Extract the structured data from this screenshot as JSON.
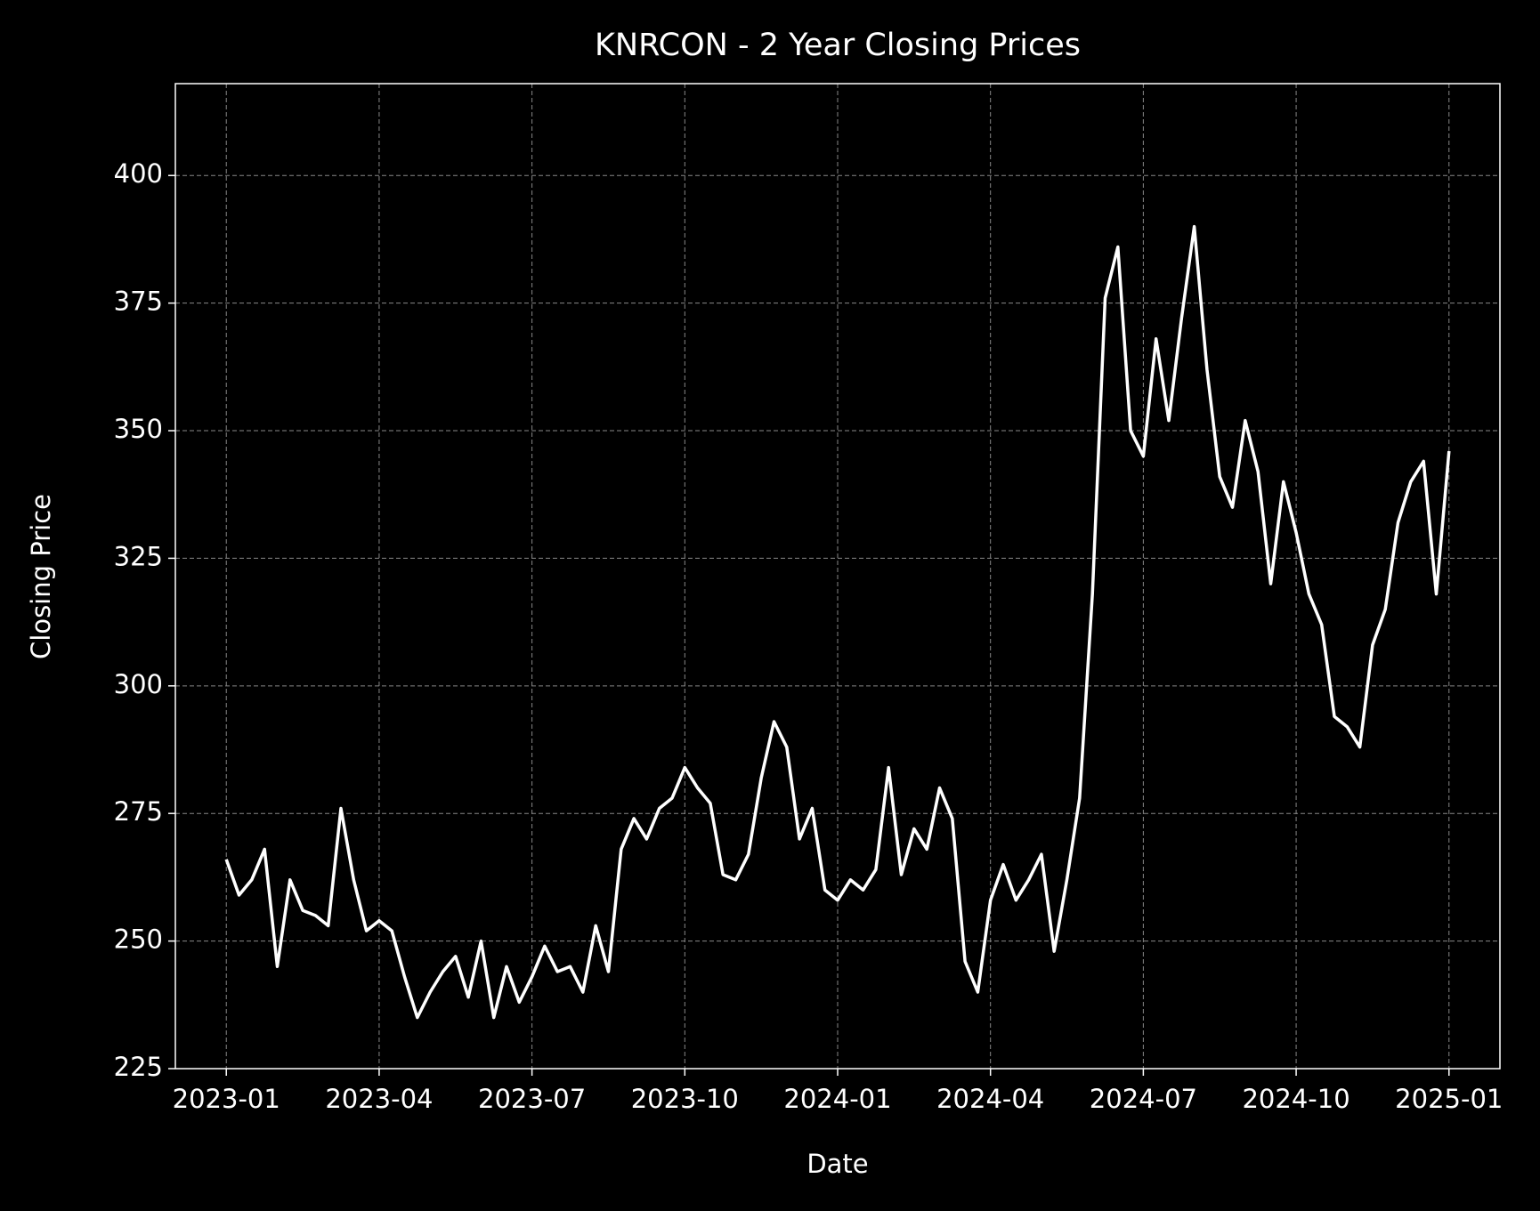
{
  "chart_data": {
    "type": "line",
    "title": "KNRCON - 2 Year Closing Prices",
    "x_label": "Date",
    "y_label": "Closing Price",
    "x": [
      "2023-01",
      "2023-01",
      "2023-01",
      "2023-01",
      "2023-02",
      "2023-02",
      "2023-02",
      "2023-02",
      "2023-03",
      "2023-03",
      "2023-03",
      "2023-03",
      "2023-04",
      "2023-04",
      "2023-04",
      "2023-04",
      "2023-05",
      "2023-05",
      "2023-05",
      "2023-05",
      "2023-06",
      "2023-06",
      "2023-06",
      "2023-06",
      "2023-07",
      "2023-07",
      "2023-07",
      "2023-07",
      "2023-08",
      "2023-08",
      "2023-08",
      "2023-08",
      "2023-09",
      "2023-09",
      "2023-09",
      "2023-09",
      "2023-10",
      "2023-10",
      "2023-10",
      "2023-10",
      "2023-11",
      "2023-11",
      "2023-11",
      "2023-11",
      "2023-12",
      "2023-12",
      "2023-12",
      "2023-12",
      "2024-01",
      "2024-01",
      "2024-01",
      "2024-01",
      "2024-02",
      "2024-02",
      "2024-02",
      "2024-02",
      "2024-03",
      "2024-03",
      "2024-03",
      "2024-03",
      "2024-04",
      "2024-04",
      "2024-04",
      "2024-04",
      "2024-05",
      "2024-05",
      "2024-05",
      "2024-05",
      "2024-06",
      "2024-06",
      "2024-06",
      "2024-06",
      "2024-07",
      "2024-07",
      "2024-07",
      "2024-07",
      "2024-08",
      "2024-08",
      "2024-08",
      "2024-08",
      "2024-09",
      "2024-09",
      "2024-09",
      "2024-09",
      "2024-10",
      "2024-10",
      "2024-10",
      "2024-10",
      "2024-11",
      "2024-11",
      "2024-11",
      "2024-11",
      "2024-12",
      "2024-12",
      "2024-12",
      "2024-12",
      "2025-01"
    ],
    "values": [
      266,
      259,
      262,
      268,
      245,
      262,
      256,
      255,
      253,
      276,
      262,
      252,
      254,
      252,
      243,
      235,
      240,
      244,
      247,
      239,
      250,
      235,
      245,
      238,
      243,
      249,
      244,
      245,
      240,
      253,
      244,
      268,
      274,
      270,
      276,
      278,
      284,
      280,
      277,
      263,
      262,
      267,
      282,
      293,
      288,
      270,
      276,
      260,
      258,
      262,
      260,
      264,
      284,
      263,
      272,
      268,
      280,
      274,
      246,
      240,
      258,
      265,
      258,
      262,
      267,
      248,
      262,
      278,
      318,
      376,
      386,
      350,
      345,
      368,
      352,
      372,
      390,
      362,
      341,
      335,
      352,
      342,
      320,
      340,
      330,
      318,
      312,
      294,
      292,
      288,
      308,
      315,
      332,
      340,
      344,
      318,
      346
    ],
    "color": "#ffffff",
    "xlim": [
      "2022-12",
      "2025-02"
    ],
    "xticks": [
      "2023-01",
      "2023-04",
      "2023-07",
      "2023-10",
      "2024-01",
      "2024-04",
      "2024-07",
      "2024-10",
      "2025-01"
    ],
    "ylim": [
      225,
      418
    ],
    "yticks": [
      225,
      250,
      275,
      300,
      325,
      350,
      375,
      400
    ],
    "grid": true
  }
}
